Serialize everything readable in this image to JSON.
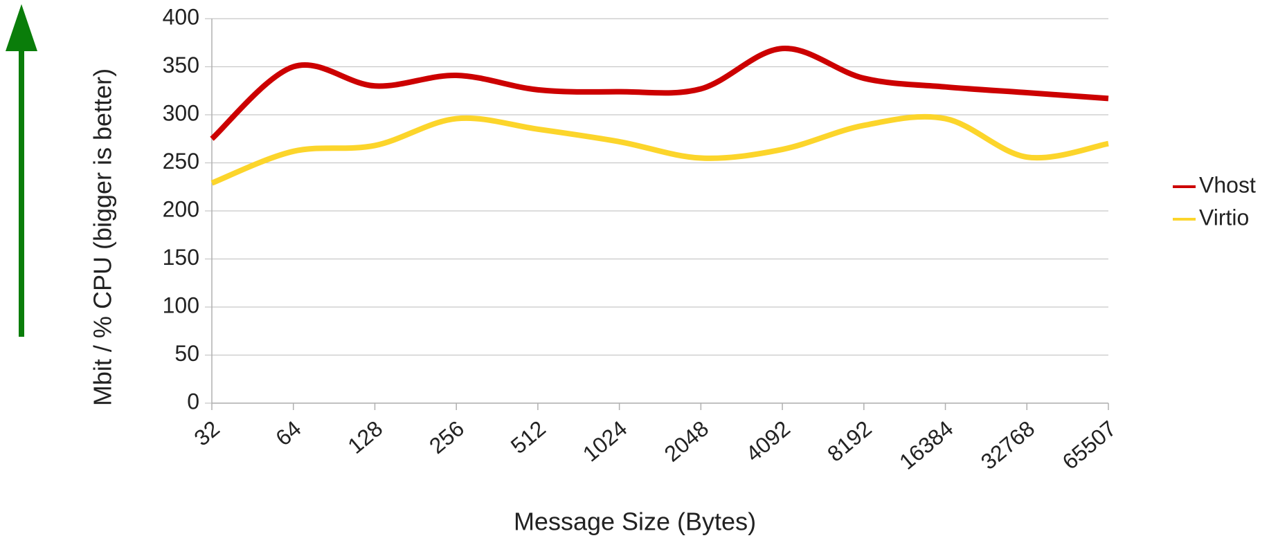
{
  "chart_data": {
    "type": "line",
    "x_label": "Message Size (Bytes)",
    "y_label": "Mbit / % CPU (bigger is better)",
    "categories": [
      "32",
      "64",
      "128",
      "256",
      "512",
      "1024",
      "2048",
      "4092",
      "8192",
      "16384",
      "32768",
      "65507"
    ],
    "series": [
      {
        "name": "Vhost",
        "color": "#cc0000",
        "values": [
          275,
          350,
          330,
          341,
          326,
          324,
          327,
          369,
          338,
          329,
          323,
          317
        ]
      },
      {
        "name": "Virtio",
        "color": "#fcd52b",
        "values": [
          229,
          262,
          268,
          296,
          285,
          272,
          255,
          264,
          289,
          296,
          256,
          270
        ]
      }
    ],
    "ylim": [
      0,
      400
    ],
    "yticks": [
      0,
      50,
      100,
      150,
      200,
      250,
      300,
      350,
      400
    ],
    "grid": true,
    "legend": "right"
  }
}
